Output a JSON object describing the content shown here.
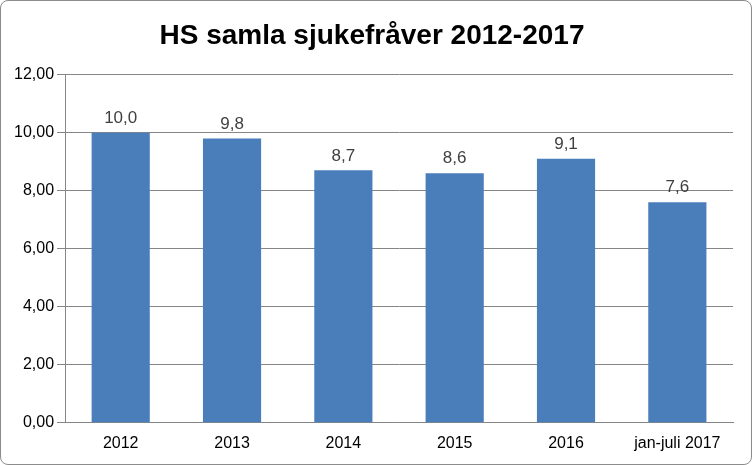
{
  "chart_data": {
    "type": "bar",
    "title": "HS samla sjukefråver 2012-2017",
    "categories": [
      "2012",
      "2013",
      "2014",
      "2015",
      "2016",
      "jan-juli 2017"
    ],
    "values": [
      10.0,
      9.8,
      8.7,
      8.6,
      9.1,
      7.6
    ],
    "value_labels": [
      "10,0",
      "9,8",
      "8,7",
      "8,6",
      "9,1",
      "7,6"
    ],
    "data_labels": true,
    "color": "#4a7ebb",
    "ylim": [
      0,
      12
    ],
    "yticks": [
      {
        "value": 0,
        "label": "0,00"
      },
      {
        "value": 2,
        "label": "2,00"
      },
      {
        "value": 4,
        "label": "4,00"
      },
      {
        "value": 6,
        "label": "6,00"
      },
      {
        "value": 8,
        "label": "8,00"
      },
      {
        "value": 10,
        "label": "10,00"
      },
      {
        "value": 12,
        "label": "12,00"
      }
    ],
    "grid": true
  }
}
